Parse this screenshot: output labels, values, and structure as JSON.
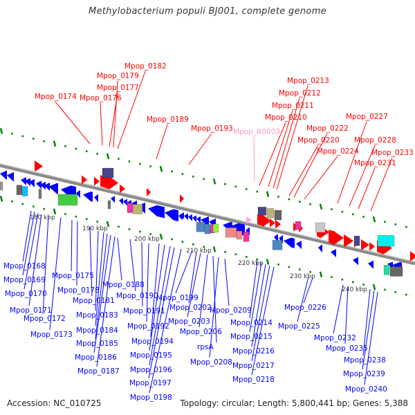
{
  "title": "Methylobacterium populi BJ001, complete genome",
  "footer": {
    "accession": "Accession: NC_010725",
    "topology": "Topology: circular; Length: 5,800,441 bp; Genes: 5,388"
  },
  "colors": {
    "forward_label": "#ff0000",
    "reverse_label": "#0000ff",
    "rna_label": "#ff99cc",
    "backbone": "#888888",
    "tick": "#008000",
    "forward_gene": "#ff0000",
    "reverse_gene": "#0000ff"
  },
  "scale_labels": [
    "180 kbp",
    "190 kbp",
    "200 kbp",
    "210 kbp",
    "220 kbp",
    "230 kbp",
    "240 kbp"
  ],
  "forward_labels": [
    {
      "text": "Mpop_0174"
    },
    {
      "text": "Mpop_0176"
    },
    {
      "text": "Mpop_0177"
    },
    {
      "text": "Mpop_0179"
    },
    {
      "text": "Mpop_0182"
    },
    {
      "text": "Mpop_0189"
    },
    {
      "text": "Mpop_0193"
    },
    {
      "text": "Mpop_R0003",
      "rna": true
    },
    {
      "text": "Mpop_0210"
    },
    {
      "text": "Mpop_0211"
    },
    {
      "text": "Mpop_0212"
    },
    {
      "text": "Mpop_0213"
    },
    {
      "text": "Mpop_0220"
    },
    {
      "text": "Mpop_0222"
    },
    {
      "text": "Mpop_0224"
    },
    {
      "text": "Mpop_0227"
    },
    {
      "text": "Mpop_0228"
    },
    {
      "text": "Mpop_0231"
    },
    {
      "text": "Mpop_0233"
    }
  ],
  "reverse_labels": [
    {
      "text": "Mpop_0168"
    },
    {
      "text": "Mpop_0169"
    },
    {
      "text": "Mpop_0170"
    },
    {
      "text": "Mpop_0171"
    },
    {
      "text": "Mpop_0172"
    },
    {
      "text": "Mpop_0173"
    },
    {
      "text": "Mpop_0175"
    },
    {
      "text": "Mpop_0178"
    },
    {
      "text": "Mpop_0181"
    },
    {
      "text": "Mpop_0183"
    },
    {
      "text": "Mpop_0184"
    },
    {
      "text": "Mpop_0185"
    },
    {
      "text": "Mpop_0186"
    },
    {
      "text": "Mpop_0187"
    },
    {
      "text": "Mpop_0188"
    },
    {
      "text": "Mpop_0190"
    },
    {
      "text": "Mpop_0191"
    },
    {
      "text": "Mpop_0192"
    },
    {
      "text": "Mpop_0194"
    },
    {
      "text": "Mpop_0195"
    },
    {
      "text": "Mpop_0196"
    },
    {
      "text": "Mpop_0197"
    },
    {
      "text": "Mpop_0198"
    },
    {
      "text": "Mpop_0199"
    },
    {
      "text": "Mpop_0202"
    },
    {
      "text": "Mpop_0203"
    },
    {
      "text": "Mpop_0206"
    },
    {
      "text": "rpsA"
    },
    {
      "text": "Mpop_0208"
    },
    {
      "text": "Mpop_0209"
    },
    {
      "text": "Mpop_0214"
    },
    {
      "text": "Mpop_0215"
    },
    {
      "text": "Mpop_0216"
    },
    {
      "text": "Mpop_0217"
    },
    {
      "text": "Mpop_0218"
    },
    {
      "text": "Mpop_0225"
    },
    {
      "text": "Mpop_0226"
    },
    {
      "text": "Mpop_0232"
    },
    {
      "text": "Mpop_0235"
    },
    {
      "text": "Mpop_0238"
    },
    {
      "text": "Mpop_0239"
    },
    {
      "text": "Mpop_0240"
    }
  ]
}
